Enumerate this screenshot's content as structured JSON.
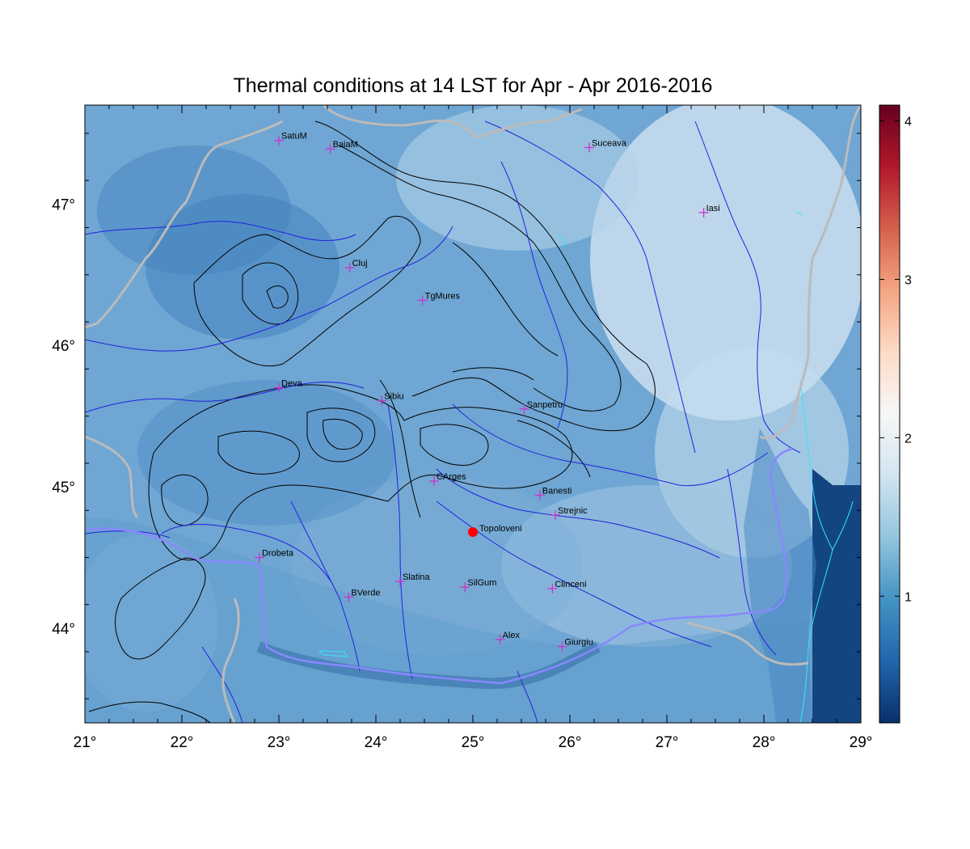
{
  "title": "Thermal conditions at 14 LST for Apr - Apr  2016-2016",
  "map": {
    "lon_range": [
      21,
      29
    ],
    "lat_range": [
      43.33,
      47.7
    ],
    "lon_ticks": [
      {
        "value": 21,
        "label": "21°"
      },
      {
        "value": 22,
        "label": "22°"
      },
      {
        "value": 23,
        "label": "23°"
      },
      {
        "value": 24,
        "label": "24°"
      },
      {
        "value": 25,
        "label": "25°"
      },
      {
        "value": 26,
        "label": "26°"
      },
      {
        "value": 27,
        "label": "27°"
      },
      {
        "value": 28,
        "label": "28°"
      },
      {
        "value": 29,
        "label": "29°"
      }
    ],
    "lat_ticks": [
      {
        "value": 44,
        "label": "44°"
      },
      {
        "value": 45,
        "label": "45°"
      },
      {
        "value": 46,
        "label": "46°"
      },
      {
        "value": 47,
        "label": "47°"
      }
    ],
    "colors": {
      "field_low": "#08306b",
      "field_mid": "#4a8fc8",
      "field_high": "#f7f7f7",
      "rivers": "#2222dd",
      "borders": "#bbbbbb",
      "contours": "#000000",
      "lakes_coast": "#33e6ff",
      "city_marker": "#cc33cc",
      "highlight_marker": "#ff0000"
    },
    "cities": [
      {
        "name": "SatuM",
        "lon": 23.0,
        "lat": 47.45
      },
      {
        "name": "BaiaM",
        "lon": 23.53,
        "lat": 47.39
      },
      {
        "name": "Suceava",
        "lon": 26.2,
        "lat": 47.4
      },
      {
        "name": "Iasi",
        "lon": 27.38,
        "lat": 46.94
      },
      {
        "name": "Cluj",
        "lon": 23.73,
        "lat": 46.55
      },
      {
        "name": "TgMures",
        "lon": 24.48,
        "lat": 46.32
      },
      {
        "name": "Deva",
        "lon": 23.0,
        "lat": 45.7
      },
      {
        "name": "Sibiu",
        "lon": 24.06,
        "lat": 45.61
      },
      {
        "name": "Sanpetru",
        "lon": 25.53,
        "lat": 45.55
      },
      {
        "name": "CArges",
        "lon": 24.6,
        "lat": 45.04
      },
      {
        "name": "Banesti",
        "lon": 25.69,
        "lat": 44.94
      },
      {
        "name": "Strejnic",
        "lon": 25.85,
        "lat": 44.8
      },
      {
        "name": "Drobeta",
        "lon": 22.8,
        "lat": 44.5
      },
      {
        "name": "Slatina",
        "lon": 24.25,
        "lat": 44.33
      },
      {
        "name": "SilGum",
        "lon": 24.92,
        "lat": 44.29
      },
      {
        "name": "Clinceni",
        "lon": 25.82,
        "lat": 44.28
      },
      {
        "name": "BVerde",
        "lon": 23.72,
        "lat": 44.22
      },
      {
        "name": "Alex",
        "lon": 25.28,
        "lat": 43.92
      },
      {
        "name": "Giurgiu",
        "lon": 25.92,
        "lat": 43.87
      }
    ],
    "highlight": {
      "name": "Topoloveni",
      "lon": 25.0,
      "lat": 44.68
    }
  },
  "colorbar": {
    "range": [
      0.2,
      4.1
    ],
    "ticks": [
      {
        "value": 1,
        "label": "1"
      },
      {
        "value": 2,
        "label": "2"
      },
      {
        "value": 3,
        "label": "3"
      },
      {
        "value": 4,
        "label": "4"
      }
    ],
    "colors": [
      "#08306b",
      "#2166ac",
      "#4393c3",
      "#92c5de",
      "#d1e5f0",
      "#f7f7f7",
      "#fddbc7",
      "#f4a582",
      "#d6604d",
      "#b2182b",
      "#67001f"
    ]
  }
}
